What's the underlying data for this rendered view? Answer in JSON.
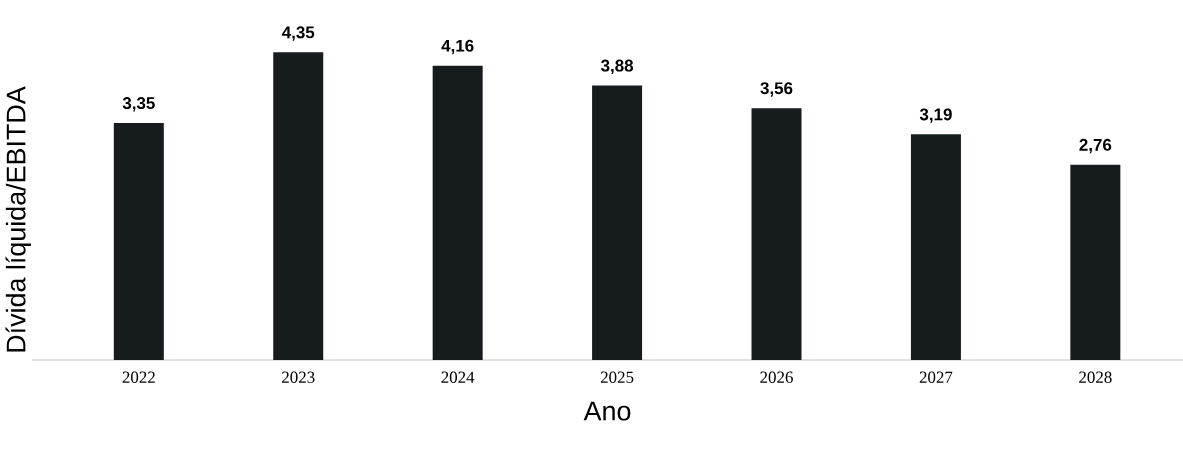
{
  "chart_data": {
    "type": "bar",
    "xlabel": "Ano",
    "ylabel": "Dívida líquida/EBITDA",
    "categories": [
      "2022",
      "2023",
      "2024",
      "2025",
      "2026",
      "2027",
      "2028"
    ],
    "values": [
      3.35,
      4.35,
      4.16,
      3.88,
      3.56,
      3.19,
      2.76
    ],
    "value_labels": [
      "3,35",
      "4,35",
      "4,16",
      "3,88",
      "3,56",
      "3,19",
      "2,76"
    ],
    "color": "#161c1e"
  }
}
